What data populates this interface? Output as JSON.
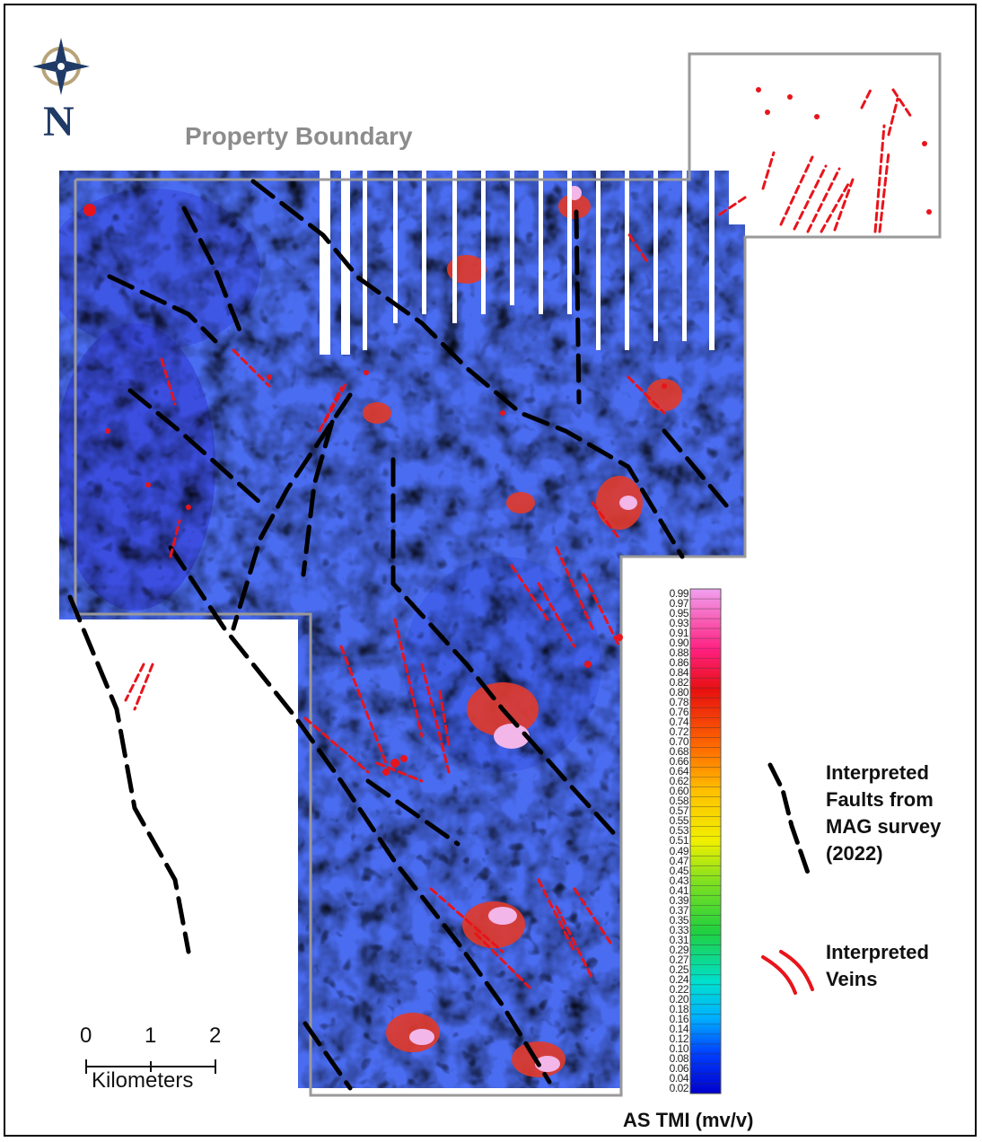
{
  "map": {
    "boundary_label": "Property Boundary",
    "north_letter": "N",
    "scale_ticks": [
      "0",
      "1",
      "2"
    ],
    "scale_unit": "Kilometers",
    "legend_fault_label": "Interpreted Faults from MAG survey (2022)",
    "legend_fault_lines": [
      "Interpreted",
      "Faults from",
      "MAG survey",
      "(2022)"
    ],
    "legend_vein_label": "Interpreted Veins",
    "legend_vein_lines": [
      "Interpreted",
      "Veins"
    ],
    "colorbar_title": "AS TMI (mv/v)",
    "colorbar_ticks": [
      "0.99",
      "0.97",
      "0.95",
      "0.93",
      "0.91",
      "0.90",
      "0.88",
      "0.86",
      "0.84",
      "0.82",
      "0.80",
      "0.78",
      "0.76",
      "0.74",
      "0.72",
      "0.70",
      "0.68",
      "0.66",
      "0.64",
      "0.62",
      "0.60",
      "0.58",
      "0.57",
      "0.55",
      "0.53",
      "0.51",
      "0.49",
      "0.47",
      "0.45",
      "0.43",
      "0.41",
      "0.39",
      "0.37",
      "0.35",
      "0.33",
      "0.31",
      "0.29",
      "0.27",
      "0.25",
      "0.24",
      "0.22",
      "0.20",
      "0.18",
      "0.16",
      "0.14",
      "0.12",
      "0.10",
      "0.08",
      "0.06",
      "0.04",
      "0.02"
    ],
    "colors": {
      "fault": "#000000",
      "vein": "#e8141b",
      "boundary": "#9a9a9a",
      "north_arrow_navy": "#1f3a66",
      "north_arrow_gold": "#b8a37a",
      "colorbar_stops": [
        "#0000cc",
        "#0040ff",
        "#00b0ff",
        "#00e0d0",
        "#20d040",
        "#80e020",
        "#f0f000",
        "#ffc000",
        "#ff7000",
        "#e81010",
        "#ff2080",
        "#f0a0f0"
      ]
    }
  }
}
